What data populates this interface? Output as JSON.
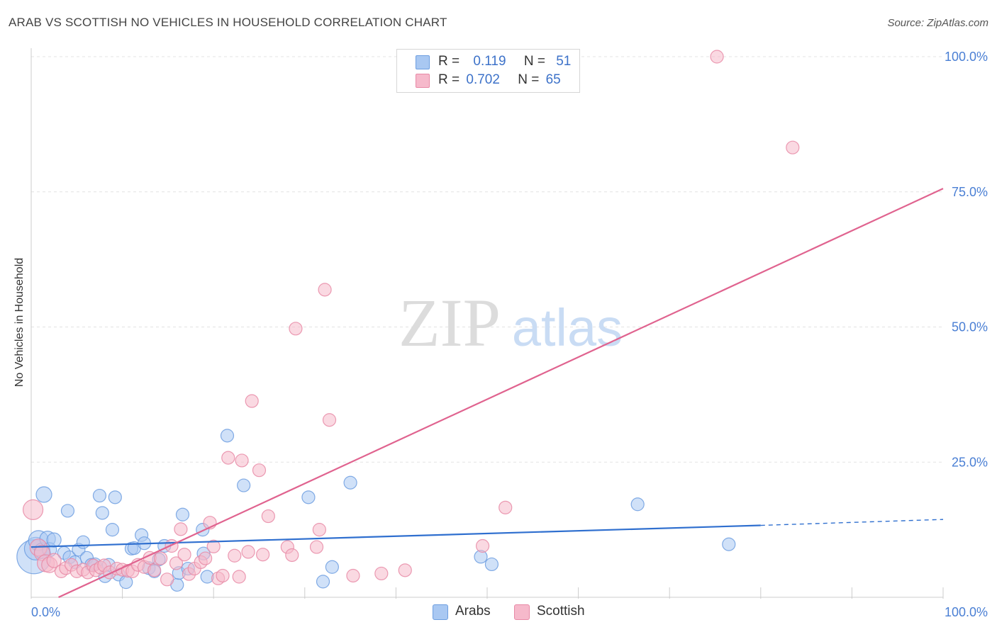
{
  "title": "ARAB VS SCOTTISH NO VEHICLES IN HOUSEHOLD CORRELATION CHART",
  "source": "Source: ZipAtlas.com",
  "watermark": {
    "zip": "ZIP",
    "atlas": "atlas"
  },
  "legend": {
    "rows": [
      {
        "r_label": "R =",
        "r_value": "0.119",
        "n_label": "N =",
        "n_value": "51",
        "color": "#a9c8f2",
        "border": "#6d9ee0"
      },
      {
        "r_label": "R =",
        "r_value": "0.702",
        "n_label": "N =",
        "n_value": "65",
        "color": "#f6b9cb",
        "border": "#e889a6"
      }
    ]
  },
  "bottom_legend": {
    "arabs": "Arabs",
    "scottish": "Scottish"
  },
  "chart_data": {
    "type": "scatter",
    "title": "ARAB VS SCOTTISH NO VEHICLES IN HOUSEHOLD CORRELATION CHART",
    "xlabel": "",
    "ylabel": "No Vehicles in Household",
    "xlim": [
      0,
      100
    ],
    "ylim": [
      0,
      100
    ],
    "x_tick_labels": [
      "0.0%",
      "100.0%"
    ],
    "y_tick_labels": [
      {
        "value": 25,
        "label": "25.0%"
      },
      {
        "value": 50,
        "label": "50.0%"
      },
      {
        "value": 75,
        "label": "75.0%"
      },
      {
        "value": 100,
        "label": "100.0%"
      }
    ],
    "grid": true,
    "series": [
      {
        "name": "Arabs",
        "color": "#6d9ee0",
        "fill": "#a9c8f2",
        "trend": {
          "x0": 0,
          "y0": 9.3,
          "x1": 80,
          "y1": 13.3,
          "dash_to_x": 100,
          "dash_to_y": 14.4
        },
        "points": [
          [
            0.3,
            7.5,
            24
          ],
          [
            0.5,
            9.0,
            16
          ],
          [
            0.8,
            10.5,
            14
          ],
          [
            1.2,
            8.6,
            11
          ],
          [
            1.4,
            19.0,
            11
          ],
          [
            1.8,
            10.8,
            11
          ],
          [
            2.0,
            8.8,
            10
          ],
          [
            2.5,
            10.6,
            10
          ],
          [
            3.6,
            8.2,
            9
          ],
          [
            4.0,
            16.0,
            9
          ],
          [
            4.2,
            7.4,
            9
          ],
          [
            4.8,
            6.5,
            9
          ],
          [
            5.2,
            8.8,
            9
          ],
          [
            5.7,
            10.2,
            9
          ],
          [
            6.1,
            7.3,
            9
          ],
          [
            6.6,
            6.0,
            9
          ],
          [
            7.0,
            6.1,
            9
          ],
          [
            7.5,
            18.8,
            9
          ],
          [
            7.8,
            15.6,
            9
          ],
          [
            8.1,
            3.9,
            9
          ],
          [
            8.5,
            6.0,
            9
          ],
          [
            8.9,
            12.5,
            9
          ],
          [
            9.2,
            18.5,
            9
          ],
          [
            9.6,
            4.2,
            9
          ],
          [
            10.4,
            2.8,
            9
          ],
          [
            11.0,
            9.0,
            9
          ],
          [
            11.3,
            9.1,
            9
          ],
          [
            12.1,
            11.5,
            9
          ],
          [
            12.4,
            10.0,
            9
          ],
          [
            12.9,
            5.4,
            9
          ],
          [
            13.5,
            4.8,
            9
          ],
          [
            14.0,
            7.0,
            9
          ],
          [
            14.6,
            9.5,
            9
          ],
          [
            16.0,
            2.3,
            9
          ],
          [
            16.2,
            4.5,
            9
          ],
          [
            16.6,
            15.3,
            9
          ],
          [
            17.2,
            5.3,
            9
          ],
          [
            18.8,
            12.5,
            9
          ],
          [
            18.9,
            8.1,
            9
          ],
          [
            19.3,
            3.8,
            9
          ],
          [
            21.5,
            29.9,
            9
          ],
          [
            23.3,
            20.7,
            9
          ],
          [
            30.4,
            18.5,
            9
          ],
          [
            32.0,
            2.9,
            9
          ],
          [
            33.0,
            5.6,
            9
          ],
          [
            35.0,
            21.2,
            9
          ],
          [
            49.3,
            7.5,
            9
          ],
          [
            50.5,
            6.1,
            9
          ],
          [
            66.5,
            17.2,
            9
          ],
          [
            76.5,
            9.8,
            9
          ]
        ]
      },
      {
        "name": "Scottish",
        "color": "#e889a6",
        "fill": "#f6b9cb",
        "trend": {
          "x0": 3.0,
          "y0": 0,
          "x1": 100,
          "y1": 75.6
        },
        "points": [
          [
            0.2,
            16.2,
            14
          ],
          [
            0.8,
            9.2,
            12
          ],
          [
            1.2,
            8.2,
            11
          ],
          [
            1.6,
            6.3,
            12
          ],
          [
            2.0,
            6.0,
            11
          ],
          [
            2.5,
            6.8,
            10
          ],
          [
            3.3,
            4.8,
            9
          ],
          [
            3.8,
            5.4,
            9
          ],
          [
            4.4,
            6.0,
            9
          ],
          [
            5.0,
            4.8,
            9
          ],
          [
            5.7,
            5.1,
            9
          ],
          [
            6.2,
            4.6,
            9
          ],
          [
            6.8,
            5.9,
            9
          ],
          [
            7.1,
            5.0,
            9
          ],
          [
            7.6,
            5.5,
            9
          ],
          [
            8.0,
            5.9,
            9
          ],
          [
            8.6,
            4.6,
            9
          ],
          [
            9.4,
            5.3,
            9
          ],
          [
            10.0,
            5.1,
            9
          ],
          [
            10.6,
            4.9,
            9
          ],
          [
            11.1,
            4.8,
            9
          ],
          [
            11.7,
            6.0,
            9
          ],
          [
            12.4,
            5.6,
            9
          ],
          [
            13.0,
            7.3,
            9
          ],
          [
            13.5,
            5.0,
            9
          ],
          [
            14.2,
            7.2,
            9
          ],
          [
            14.9,
            3.3,
            9
          ],
          [
            15.4,
            9.5,
            9
          ],
          [
            15.9,
            6.3,
            9
          ],
          [
            16.4,
            12.6,
            9
          ],
          [
            16.8,
            7.9,
            9
          ],
          [
            17.3,
            4.3,
            9
          ],
          [
            17.9,
            5.3,
            9
          ],
          [
            18.6,
            6.5,
            9
          ],
          [
            19.1,
            7.2,
            9
          ],
          [
            19.6,
            13.8,
            9
          ],
          [
            20.0,
            9.4,
            9
          ],
          [
            20.5,
            3.5,
            9
          ],
          [
            21.0,
            4.0,
            9
          ],
          [
            21.6,
            25.8,
            9
          ],
          [
            22.3,
            7.7,
            9
          ],
          [
            22.8,
            3.8,
            9
          ],
          [
            23.1,
            25.3,
            9
          ],
          [
            23.8,
            8.4,
            9
          ],
          [
            24.2,
            36.3,
            9
          ],
          [
            25.0,
            23.5,
            9
          ],
          [
            25.4,
            7.9,
            9
          ],
          [
            26.0,
            15.0,
            9
          ],
          [
            28.1,
            9.3,
            9
          ],
          [
            28.6,
            7.8,
            9
          ],
          [
            29.0,
            49.7,
            9
          ],
          [
            31.3,
            9.3,
            9
          ],
          [
            31.6,
            12.5,
            9
          ],
          [
            32.2,
            56.9,
            9
          ],
          [
            32.7,
            32.8,
            9
          ],
          [
            35.3,
            4.0,
            9
          ],
          [
            38.4,
            4.4,
            9
          ],
          [
            41.0,
            5.0,
            9
          ],
          [
            49.5,
            9.5,
            9
          ],
          [
            52.0,
            16.6,
            9
          ],
          [
            75.2,
            100.0,
            9
          ],
          [
            83.5,
            83.2,
            9
          ]
        ]
      }
    ]
  }
}
